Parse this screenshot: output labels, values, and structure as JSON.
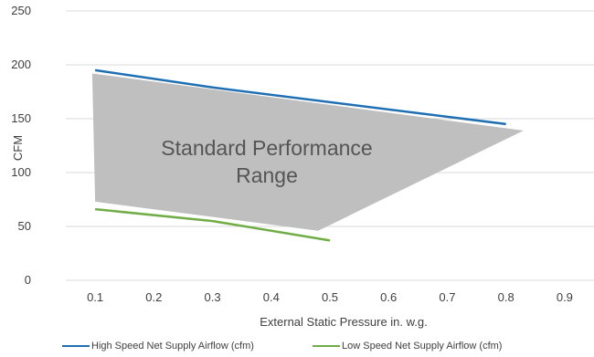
{
  "chart_data": {
    "type": "line",
    "xlabel": "External Static Pressure in. w.g.",
    "ylabel": "CFM",
    "xlim": [
      0.05,
      0.95
    ],
    "ylim": [
      0,
      250
    ],
    "x_ticks": [
      "0.1",
      "0.2",
      "0.3",
      "0.4",
      "0.5",
      "0.6",
      "0.7",
      "0.8",
      "0.9"
    ],
    "y_ticks": [
      "0",
      "50",
      "100",
      "150",
      "200",
      "250"
    ],
    "grid": "horizontal",
    "legend_position": "bottom",
    "series": [
      {
        "name": "High Speed Net Supply Airflow (cfm)",
        "color": "#1f6fb2",
        "x": [
          0.1,
          0.3,
          0.8
        ],
        "y": [
          195,
          179,
          145
        ]
      },
      {
        "name": "Low Speed Net Supply Airflow (cfm)",
        "color": "#70ad47",
        "x": [
          0.1,
          0.3,
          0.5
        ],
        "y": [
          66,
          55,
          37
        ]
      }
    ],
    "annotation": {
      "text_line1": "Standard Performance",
      "text_line2": "Range",
      "fill": "#bfbfbf",
      "polygon": [
        [
          0.095,
          192
        ],
        [
          0.83,
          139
        ],
        [
          0.48,
          46
        ],
        [
          0.1,
          73
        ]
      ]
    }
  }
}
